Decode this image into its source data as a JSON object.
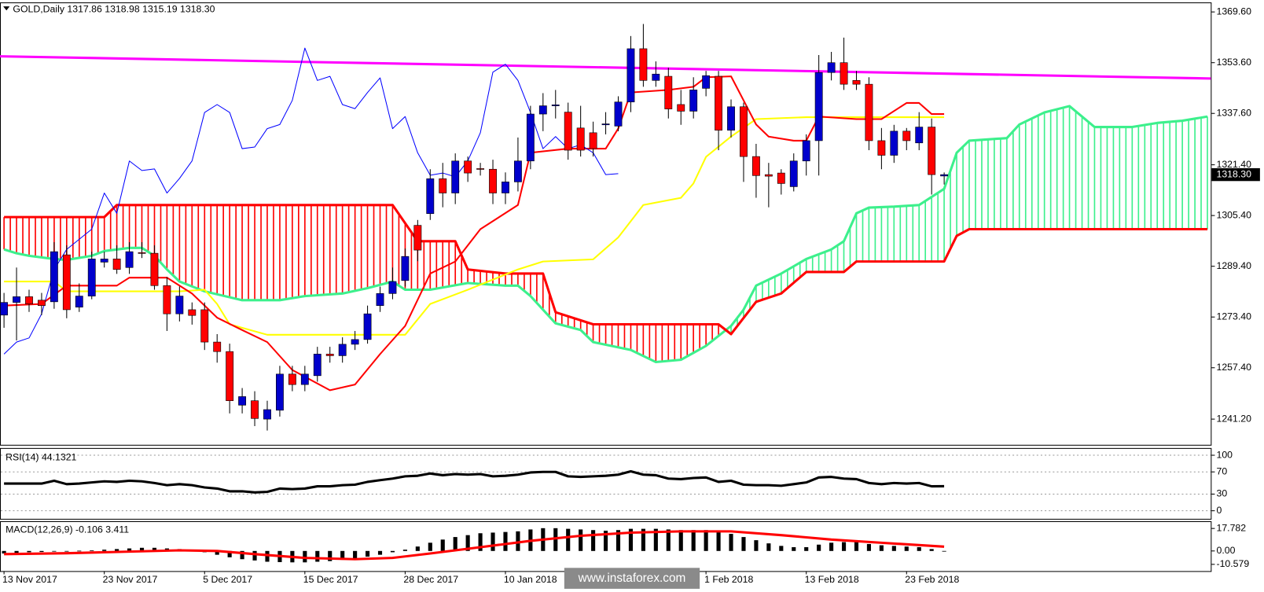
{
  "chart_data": [
    {
      "type": "candlestick",
      "title": "GOLD,Daily  1317.86 1318.98 1315.19 1318.30",
      "open": [
        1274,
        1278,
        1279.8,
        1278.7,
        1278.2,
        1293,
        1276.5,
        1280,
        1290.7,
        1291.7,
        1289,
        1293.7,
        1293.5,
        1283.3,
        1274.4,
        1275.7,
        1275.7,
        1265.5,
        1262.5,
        1245.6,
        1247,
        1241.2,
        1244,
        1255.4,
        1252.1,
        1254.9,
        1261.7,
        1261.2,
        1264.8,
        1266.3,
        1277,
        1280.8,
        1284.9,
        1302.3,
        1306,
        1317,
        1312.5,
        1322.6,
        1320.2,
        1320,
        1312.5,
        1316,
        1322.6,
        1337.4,
        1340,
        1338,
        1333,
        1331.5,
        1334,
        1333.6,
        1341.2,
        1358,
        1348,
        1349.3,
        1340.4,
        1338.3,
        1345.5,
        1349.3,
        1332.3,
        1339.7,
        1324,
        1318.3,
        1318.8,
        1314.5,
        1322.6,
        1329,
        1350.5,
        1353.6,
        1348,
        1346.8,
        1329,
        1324.4,
        1332,
        1328.3,
        1333.3,
        1317.86
      ],
      "high": [
        1281,
        1289,
        1282,
        1281,
        1297,
        1296,
        1284,
        1294,
        1294,
        1296,
        1297,
        1297,
        1296,
        1286,
        1283,
        1278,
        1278,
        1268,
        1265,
        1251,
        1250,
        1247,
        1258,
        1258,
        1258,
        1264,
        1264,
        1267,
        1269,
        1277,
        1283,
        1289,
        1295,
        1304,
        1320,
        1322,
        1325,
        1324,
        1322,
        1323,
        1319,
        1330,
        1340,
        1344,
        1345,
        1341,
        1340,
        1335,
        1338,
        1343,
        1362,
        1365.8,
        1354,
        1352,
        1345,
        1349,
        1351,
        1351,
        1342,
        1341,
        1328,
        1322,
        1320,
        1325,
        1331,
        1356,
        1357,
        1361.5,
        1351,
        1349,
        1333,
        1334,
        1333,
        1338,
        1336,
        1318.98
      ],
      "low": [
        1270,
        1266,
        1275,
        1274,
        1276,
        1273,
        1275,
        1279,
        1289,
        1287,
        1287,
        1292,
        1282,
        1269,
        1272,
        1271,
        1263,
        1259,
        1243,
        1243,
        1239,
        1237.6,
        1242,
        1250,
        1250,
        1253,
        1259,
        1259,
        1263,
        1265,
        1275,
        1279,
        1283,
        1291,
        1304,
        1308,
        1309,
        1316,
        1318,
        1309,
        1309,
        1313,
        1320,
        1332,
        1336,
        1323,
        1324,
        1324,
        1331,
        1332,
        1338,
        1346,
        1346,
        1336,
        1334,
        1336,
        1343,
        1326,
        1330,
        1316,
        1311,
        1308,
        1312,
        1313,
        1318,
        1318,
        1348,
        1345,
        1345,
        1326,
        1320,
        1322,
        1326,
        1326,
        1312,
        1315.19
      ],
      "close": [
        1278,
        1279.8,
        1277.5,
        1277,
        1294,
        1275.7,
        1280,
        1291.7,
        1291.7,
        1288.4,
        1294,
        1293.5,
        1283.3,
        1274.4,
        1280,
        1273.9,
        1265.5,
        1262.5,
        1247,
        1248.3,
        1241.4,
        1244.2,
        1255.4,
        1252.1,
        1255.4,
        1261.7,
        1261.2,
        1264.8,
        1266.3,
        1274.4,
        1280.8,
        1284.6,
        1292.5,
        1294.5,
        1317,
        1312.5,
        1322.6,
        1318.8,
        1320,
        1312.5,
        1316,
        1322.6,
        1337.4,
        1340,
        1340.3,
        1326,
        1326,
        1326.5,
        1334.3,
        1341.2,
        1358,
        1348,
        1350,
        1339,
        1338.3,
        1345,
        1349.5,
        1332.3,
        1339.7,
        1324,
        1318,
        1317.8,
        1315.5,
        1322.6,
        1329,
        1350.5,
        1353.6,
        1346.8,
        1346.8,
        1329,
        1324.4,
        1332,
        1329,
        1333.3,
        1318.3,
        1318.3
      ],
      "bull_color": "#0000cc",
      "bear_color": "#ff0000",
      "last_price_label": "1318.30",
      "xlim": [
        -0.32,
        96.27
      ],
      "ylim": [
        1233.1,
        1372.6
      ],
      "yticks": [
        {
          "value": 1369.6,
          "label": "1369.60"
        },
        {
          "value": 1353.6,
          "label": "1353.60"
        },
        {
          "value": 1337.6,
          "label": "1337.60"
        },
        {
          "value": 1321.4,
          "label": "1321.40"
        },
        {
          "value": 1305.4,
          "label": "1305.40"
        },
        {
          "value": 1289.4,
          "label": "1289.40"
        },
        {
          "value": 1273.4,
          "label": "1273.40"
        },
        {
          "value": 1257.4,
          "label": "1257.40"
        },
        {
          "value": 1241.2,
          "label": "1241.20"
        }
      ],
      "xticks": [
        {
          "value": 0,
          "label": "13 Nov 2017"
        },
        {
          "value": 8,
          "label": "23 Nov 2017"
        },
        {
          "value": 16,
          "label": "5 Dec 2017"
        },
        {
          "value": 24,
          "label": "15 Dec 2017"
        },
        {
          "value": 32,
          "label": "28 Dec 2017"
        },
        {
          "value": 40,
          "label": "10 Jan 2018"
        },
        {
          "value": 56,
          "label": "1 Feb 2018"
        },
        {
          "value": 64,
          "label": "13 Feb 2018"
        },
        {
          "value": 72,
          "label": "23 Feb 2018"
        }
      ],
      "cloud": {
        "span_a": {
          "color": "#3cf08c",
          "x": [
            0,
            1,
            2,
            4,
            5,
            7,
            8,
            10,
            11,
            12,
            13,
            14,
            16,
            19,
            22,
            24,
            27,
            29,
            31,
            32,
            34,
            37,
            40,
            41,
            42,
            44,
            46,
            47,
            50,
            52,
            54,
            56,
            58,
            59,
            60,
            62,
            64,
            66,
            67,
            68,
            69,
            71,
            73,
            75,
            76,
            77,
            80,
            81,
            83,
            85,
            87,
            90,
            92,
            94,
            96
          ],
          "values": [
            1294.7,
            1293.5,
            1292.7,
            1291.7,
            1291.4,
            1292.7,
            1294.2,
            1295.2,
            1295.2,
            1292.7,
            1288.4,
            1284.6,
            1281.5,
            1278.7,
            1278.7,
            1280,
            1280.8,
            1282.5,
            1284.6,
            1282,
            1282,
            1284.1,
            1283.3,
            1283.3,
            1280,
            1271.4,
            1269.3,
            1265.5,
            1263,
            1259.2,
            1259.9,
            1264.3,
            1270.6,
            1275.7,
            1283.3,
            1287.1,
            1291.7,
            1294.7,
            1297.3,
            1306.1,
            1307.9,
            1308.2,
            1308.7,
            1313.8,
            1325.2,
            1329,
            1329.8,
            1334.1,
            1337.9,
            1339.9,
            1333.3,
            1333.3,
            1334.6,
            1335.3,
            1336.6
          ]
        },
        "span_b": {
          "color": "#ff0000",
          "x": [
            0,
            8,
            9,
            31,
            33,
            36,
            37,
            40,
            43,
            44,
            47,
            57,
            58,
            60,
            62,
            64,
            67,
            68,
            75,
            76,
            77,
            96
          ],
          "values": [
            1304.9,
            1304.9,
            1308.7,
            1308.7,
            1297.3,
            1297.3,
            1288.4,
            1287.1,
            1287.1,
            1274.9,
            1271.1,
            1271.1,
            1268,
            1278.2,
            1280.8,
            1287.6,
            1287.6,
            1290.9,
            1290.9,
            1299,
            1301.1,
            1301.1
          ]
        }
      },
      "lines": [
        {
          "color": "#ff00ff",
          "width": 3,
          "x": [
            -0.32,
            96.27
          ],
          "values": [
            1355.6,
            1348.6
          ]
        },
        {
          "color": "#ffff00",
          "width": 2,
          "x": [
            0,
            4,
            5,
            14,
            16,
            17,
            18,
            21,
            32,
            34,
            37,
            41,
            43,
            47,
            49,
            51,
            54,
            55,
            56,
            58,
            60,
            64,
            75
          ],
          "values": [
            1284.6,
            1284.6,
            1281.5,
            1281.5,
            1282,
            1277.5,
            1271.1,
            1267.8,
            1267.8,
            1277.5,
            1282,
            1288.4,
            1290.9,
            1291.6,
            1298.5,
            1308.7,
            1311,
            1315.5,
            1323.9,
            1330.3,
            1335.8,
            1336.4,
            1336.4
          ]
        },
        {
          "color": "#ff0000",
          "width": 2,
          "x": [
            0,
            3,
            5,
            9,
            10,
            13,
            15,
            17,
            19,
            21,
            23,
            26,
            28,
            30,
            32,
            34,
            36,
            38,
            41,
            42,
            45,
            48,
            49,
            50,
            53,
            55,
            56,
            58,
            60,
            61,
            63,
            64,
            65,
            68,
            70,
            72,
            73,
            74,
            75
          ],
          "values": [
            1277,
            1277.5,
            1283.3,
            1283.3,
            1285.8,
            1285.8,
            1280.8,
            1273.2,
            1269.3,
            1265.5,
            1256.7,
            1250.3,
            1252.1,
            1261.7,
            1270.6,
            1287.1,
            1290.9,
            1301.1,
            1308.7,
            1325.2,
            1326.5,
            1326.5,
            1332.8,
            1344.2,
            1345,
            1346,
            1349,
            1349.3,
            1334.1,
            1330.3,
            1329,
            1329,
            1336.6,
            1335.8,
            1335.8,
            1340.9,
            1340.9,
            1337.4,
            1337.4
          ]
        },
        {
          "color": "#0000ff",
          "width": 1,
          "x": [
            0,
            1,
            2,
            3,
            4,
            5,
            7,
            8,
            9,
            10,
            11,
            12,
            13,
            14,
            15,
            16,
            17,
            18,
            19,
            20,
            21,
            22,
            23,
            24,
            25,
            26,
            27,
            28,
            29,
            30,
            31,
            32,
            33,
            34,
            35,
            36,
            37,
            38,
            39,
            40,
            41,
            42,
            43,
            44,
            45,
            46,
            47,
            48,
            49
          ],
          "values": [
            1261.7,
            1265.5,
            1266.8,
            1274.4,
            1288.4,
            1294.7,
            1301.1,
            1312.5,
            1306.1,
            1322.6,
            1319.6,
            1320.1,
            1312.5,
            1317.1,
            1322.6,
            1337.9,
            1340.4,
            1337.9,
            1326.5,
            1327,
            1332.8,
            1334.1,
            1341.7,
            1358.2,
            1348,
            1349.3,
            1340.4,
            1339.1,
            1344.2,
            1348.8,
            1332.8,
            1336.6,
            1325.2,
            1318.1,
            1318.8,
            1317.6,
            1322.6,
            1331.5,
            1350.6,
            1353.1,
            1348,
            1337.9,
            1326.5,
            1330.3,
            1326.5,
            1327.7,
            1325.2,
            1318.3,
            1318.6
          ]
        }
      ],
      "watermark": "www.instaforex.com"
    },
    {
      "type": "line",
      "title": "RSI(14) 44.1321",
      "color": "#000000",
      "values": [
        49,
        49,
        49,
        49,
        54,
        48,
        49,
        51,
        53,
        52,
        54,
        53,
        50,
        46,
        48,
        46,
        42,
        40,
        35,
        35,
        33,
        34,
        40,
        39,
        40,
        44,
        44,
        46,
        47,
        52,
        55,
        58,
        62,
        63,
        67,
        64,
        66,
        65,
        66,
        62,
        63,
        65,
        69,
        70,
        70,
        62,
        61,
        62,
        63,
        65,
        71,
        65,
        64,
        58,
        57,
        59,
        60,
        52,
        54,
        47,
        46,
        46,
        45,
        48,
        51,
        60,
        61,
        58,
        57,
        50,
        48,
        50,
        49,
        50,
        44,
        44.1321
      ],
      "ylim": [
        -14.5,
        113
      ],
      "yticks": [
        100,
        70,
        30,
        0
      ],
      "grid": "dotted"
    },
    {
      "type": "macd",
      "title": "MACD(12,26,9) -0.106 3.411",
      "histogram": {
        "color": "#000000",
        "values": [
          -2,
          -1.5,
          -1,
          -0.8,
          -0.5,
          0,
          0.2,
          0.5,
          1,
          1.5,
          2,
          2.5,
          2.5,
          2,
          1.5,
          0.5,
          -1,
          -3,
          -5,
          -6.5,
          -7.5,
          -8.5,
          -8.8,
          -9,
          -9,
          -8.5,
          -8,
          -7,
          -6,
          -4.5,
          -3,
          -1,
          1,
          3.5,
          6.5,
          9,
          11,
          12.5,
          14,
          14.5,
          15,
          15.5,
          17,
          18,
          18,
          17.5,
          17,
          16.5,
          16,
          16.5,
          17.5,
          17.5,
          17.5,
          17,
          16.5,
          16.5,
          16.5,
          15,
          13.5,
          11,
          8.5,
          6,
          4,
          3,
          3,
          5,
          6.5,
          7,
          7,
          5.5,
          4.5,
          4,
          3.5,
          3,
          1.5,
          -0.106
        ]
      },
      "signal": {
        "color": "#ff0000",
        "x": [
          0,
          5,
          10,
          14,
          17,
          20,
          24,
          28,
          31,
          34,
          38,
          42,
          46,
          50,
          54,
          58,
          62,
          66,
          70,
          75
        ],
        "values": [
          -2.5,
          -1.8,
          -0.5,
          0.5,
          0,
          -2.5,
          -5.5,
          -6.5,
          -5.5,
          -2,
          3,
          8,
          12,
          14.5,
          15.5,
          15.5,
          12.5,
          9,
          6.5,
          3.411
        ]
      },
      "ylim": [
        -15.9,
        23.5
      ],
      "yticks": [
        17.782,
        {
          "value": 0,
          "label": "0.00"
        },
        -10.579
      ]
    }
  ]
}
